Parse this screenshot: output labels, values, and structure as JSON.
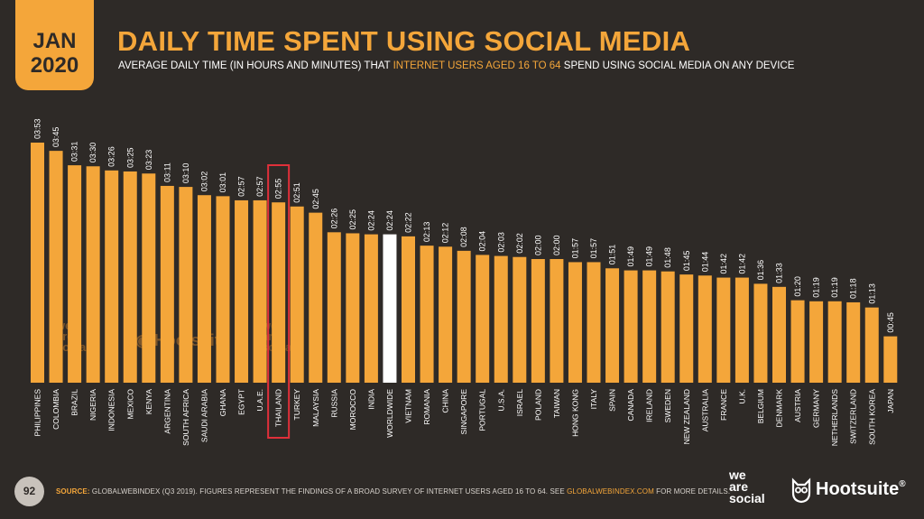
{
  "header": {
    "badge_month": "JAN",
    "badge_year": "2020",
    "title": "DAILY TIME SPENT USING SOCIAL MEDIA",
    "subtitle_pre": "AVERAGE DAILY TIME (IN HOURS AND MINUTES) THAT ",
    "subtitle_highlight": "INTERNET USERS AGED 16 TO 64",
    "subtitle_post": " SPEND USING SOCIAL MEDIA ON ANY DEVICE"
  },
  "chart_data": {
    "type": "bar",
    "value_format": "hh:mm",
    "highlighted_category": "THAILAND",
    "reference_category": "WORLDWIDE",
    "colors": {
      "bar": "#f4a63a",
      "reference_bar": "#ffffff",
      "highlight_box": "#e0303a",
      "background": "#2e2a27"
    },
    "categories": [
      "PHILIPPINES",
      "COLOMBIA",
      "BRAZIL",
      "NIGERIA",
      "INDONESIA",
      "MEXICO",
      "KENYA",
      "ARGENTINA",
      "SOUTH AFRICA",
      "SAUDI ARABIA",
      "GHANA",
      "EGYPT",
      "U.A.E.",
      "THAILAND",
      "TURKEY",
      "MALAYSIA",
      "RUSSIA",
      "MOROCCO",
      "INDIA",
      "WORLDWIDE",
      "VIETNAM",
      "ROMANIA",
      "CHINA",
      "SINGAPORE",
      "PORTUGAL",
      "U.S.A.",
      "ISRAEL",
      "POLAND",
      "TAIWAN",
      "HONG KONG",
      "ITALY",
      "SPAIN",
      "CANADA",
      "IRELAND",
      "SWEDEN",
      "NEW ZEALAND",
      "AUSTRALIA",
      "FRANCE",
      "U.K.",
      "BELGIUM",
      "DENMARK",
      "AUSTRIA",
      "GERMANY",
      "NETHERLANDS",
      "SWITZERLAND",
      "SOUTH KOREA",
      "JAPAN"
    ],
    "values": [
      "03:53",
      "03:45",
      "03:31",
      "03:30",
      "03:26",
      "03:25",
      "03:23",
      "03:11",
      "03:10",
      "03:02",
      "03:01",
      "02:57",
      "02:57",
      "02:55",
      "02:51",
      "02:45",
      "02:26",
      "02:25",
      "02:24",
      "02:24",
      "02:22",
      "02:13",
      "02:12",
      "02:08",
      "02:04",
      "02:03",
      "02:02",
      "02:00",
      "02:00",
      "01:57",
      "01:57",
      "01:51",
      "01:49",
      "01:49",
      "01:48",
      "01:45",
      "01:44",
      "01:42",
      "01:42",
      "01:36",
      "01:33",
      "01:20",
      "01:19",
      "01:19",
      "01:18",
      "01:13",
      "00:45"
    ]
  },
  "footer": {
    "page_number": "92",
    "source_label": "SOURCE:",
    "source_text": " GLOBALWEBINDEX (Q3 2019). FIGURES REPRESENT THE FINDINGS OF A BROAD SURVEY OF INTERNET USERS AGED 16 TO 64. SEE ",
    "source_link": "GLOBALWEBINDEX.COM",
    "source_end": " FOR MORE DETAILS."
  },
  "logos": {
    "we_are_social_line1": "we",
    "we_are_social_line2": "are",
    "we_are_social_line3": "social",
    "hootsuite": "Hootsuite",
    "hootsuite_suffix": "®"
  }
}
